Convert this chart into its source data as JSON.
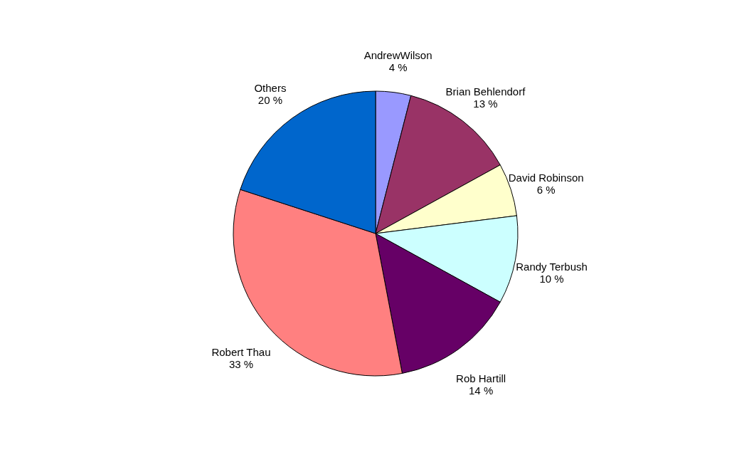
{
  "chart_data": {
    "type": "pie",
    "categories": [
      "AndrewWilson",
      "Brian Behlendorf",
      "David Robinson",
      "Randy Terbush",
      "Rob Hartill",
      "Robert Thau",
      "Others"
    ],
    "values": [
      4,
      13,
      6,
      10,
      14,
      33,
      20
    ],
    "colors": [
      "#9999ff",
      "#993366",
      "#ffffcc",
      "#ccffff",
      "#660066",
      "#ff8080",
      "#0066cc"
    ],
    "value_labels": [
      "4 %",
      "13 %",
      "6 %",
      "10 %",
      "14 %",
      "33 %",
      "20 %"
    ]
  }
}
